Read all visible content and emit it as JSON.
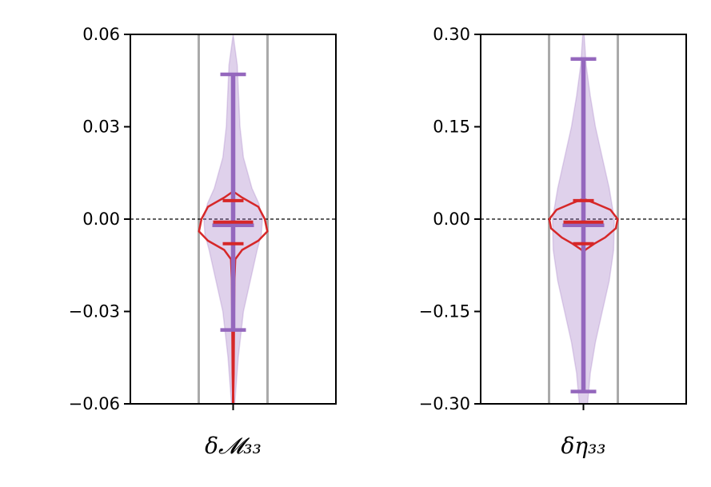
{
  "chart_data": [
    {
      "type": "violin",
      "category_label": "δ𝓜₃₃",
      "ylim": [
        -0.06,
        0.06
      ],
      "yticks": [
        0.06,
        0.03,
        0.0,
        -0.03,
        -0.06
      ],
      "ytick_labels": [
        "0.06",
        "0.03",
        "0.00",
        "−0.03",
        "−0.06"
      ],
      "zero_reference_line": 0.0,
      "colors": {
        "wide": "#9467bd",
        "narrow": "#d62728",
        "band": "#aaaaaa"
      },
      "wide_distribution": {
        "min": -0.036,
        "max": 0.047,
        "median": -0.002,
        "quartiles": [
          -0.008,
          0.006
        ],
        "density_profile": [
          [
            0.06,
            0.0
          ],
          [
            0.05,
            0.12
          ],
          [
            0.04,
            0.16
          ],
          [
            0.03,
            0.2
          ],
          [
            0.02,
            0.3
          ],
          [
            0.01,
            0.55
          ],
          [
            0.005,
            0.75
          ],
          [
            0.0,
            0.85
          ],
          [
            -0.005,
            0.82
          ],
          [
            -0.01,
            0.7
          ],
          [
            -0.02,
            0.5
          ],
          [
            -0.03,
            0.3
          ],
          [
            -0.045,
            0.15
          ],
          [
            -0.06,
            0.05
          ]
        ]
      },
      "narrow_distribution": {
        "min": -0.06,
        "max": 0.009,
        "median": -0.002,
        "quartiles": [
          -0.008,
          0.006
        ],
        "density_profile": [
          [
            0.009,
            0.0
          ],
          [
            0.007,
            0.25
          ],
          [
            0.004,
            0.7
          ],
          [
            0.0,
            0.88
          ],
          [
            -0.004,
            0.95
          ],
          [
            -0.007,
            0.7
          ],
          [
            -0.01,
            0.25
          ],
          [
            -0.013,
            0.06
          ],
          [
            -0.02,
            0.035
          ],
          [
            -0.035,
            0.025
          ],
          [
            -0.05,
            0.015
          ],
          [
            -0.06,
            0.0
          ]
        ]
      }
    },
    {
      "type": "violin",
      "category_label": "δη₃₃",
      "ylim": [
        -0.3,
        0.3
      ],
      "yticks": [
        0.3,
        0.15,
        0.0,
        -0.15,
        -0.3
      ],
      "ytick_labels": [
        "0.30",
        "0.15",
        "0.00",
        "−0.15",
        "−0.30"
      ],
      "zero_reference_line": 0.0,
      "colors": {
        "wide": "#9467bd",
        "narrow": "#d62728",
        "band": "#aaaaaa"
      },
      "wide_distribution": {
        "min": -0.28,
        "max": 0.26,
        "median": -0.01,
        "quartiles": [
          -0.04,
          0.03
        ],
        "density_profile": [
          [
            0.3,
            0.02
          ],
          [
            0.25,
            0.08
          ],
          [
            0.2,
            0.2
          ],
          [
            0.15,
            0.35
          ],
          [
            0.1,
            0.55
          ],
          [
            0.05,
            0.75
          ],
          [
            0.0,
            0.9
          ],
          [
            -0.05,
            0.88
          ],
          [
            -0.1,
            0.75
          ],
          [
            -0.15,
            0.55
          ],
          [
            -0.2,
            0.35
          ],
          [
            -0.25,
            0.2
          ],
          [
            -0.3,
            0.12
          ]
        ]
      },
      "narrow_distribution": {
        "min": -0.05,
        "max": 0.03,
        "median": -0.01,
        "quartiles": [
          -0.04,
          0.03
        ],
        "density_profile": [
          [
            0.033,
            0.0
          ],
          [
            0.025,
            0.35
          ],
          [
            0.015,
            0.75
          ],
          [
            0.0,
            0.95
          ],
          [
            -0.015,
            0.9
          ],
          [
            -0.03,
            0.6
          ],
          [
            -0.04,
            0.3
          ],
          [
            -0.05,
            0.05
          ],
          [
            -0.055,
            0.0
          ]
        ]
      }
    }
  ]
}
